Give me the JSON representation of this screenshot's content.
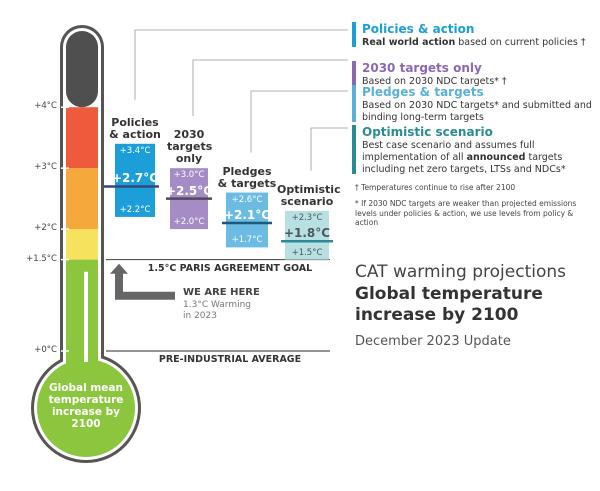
{
  "chart_data": {
    "type": "range",
    "title": "CAT warming projections",
    "subtitle": "Global temperature increase by 2100",
    "date": "December 2023 Update",
    "y_label": "Global mean temperature increase by 2100",
    "ylim": [
      0,
      5.3
    ],
    "yticks": [
      {
        "value": 0,
        "label": "+0°C"
      },
      {
        "value": 1.5,
        "label": "+1.5°C"
      },
      {
        "value": 2,
        "label": "+2°C"
      },
      {
        "value": 3,
        "label": "+3°C"
      },
      {
        "value": 4,
        "label": "+4°C"
      }
    ],
    "band_colors": [
      "#8cc63f",
      "#f6e25c",
      "#f5a83b",
      "#ee5a3c",
      "#4f4f4f"
    ],
    "series": [
      {
        "name": "Policies & action",
        "color": "#1c9fd9",
        "box_color": "#1c9fd9",
        "line_color": "#34477a",
        "label_color": "#ffffff",
        "values": [
          2.2,
          2.7,
          3.4
        ],
        "value_labels": [
          "+2.2°C",
          "+2.7°C",
          "+3.4°C"
        ],
        "description": [
          {
            "text": "Real world action",
            "bold": true
          },
          {
            "text": " based on current policies †",
            "bold": false
          }
        ]
      },
      {
        "name": "2030 targets only",
        "color": "#8b68b3",
        "box_color": "#a58cc4",
        "line_color": "#4f4a5e",
        "label_color": "#ffffff",
        "values": [
          2.0,
          2.5,
          3.0
        ],
        "value_labels": [
          "+2.0°C",
          "+2.5°C",
          "+3.0°C"
        ],
        "description": [
          {
            "text": "Based on 2030 NDC targets* †",
            "bold": false
          }
        ]
      },
      {
        "name": "Pledges & targets",
        "color": "#5bb0d9",
        "box_color": "#6cbbe3",
        "line_color": "#1d5a7a",
        "label_color": "#ffffff",
        "values": [
          1.7,
          2.1,
          2.6
        ],
        "value_labels": [
          "+1.7°C",
          "+2.1°C",
          "+2.6°C"
        ],
        "description": [
          {
            "text": "Based on 2030 NDC targets* and submitted and binding long-term targets",
            "bold": false
          }
        ]
      },
      {
        "name": "Optimistic scenario",
        "color": "#2b8b94",
        "box_color": "#b8dfe1",
        "line_color": "#2b8b94",
        "label_color": "#4a5a5c",
        "values": [
          1.5,
          1.8,
          2.3
        ],
        "value_labels": [
          "+1.5°C",
          "+1.8°C",
          "+2.3°C"
        ],
        "description": [
          {
            "text": "Best case scenario and assumes full implementation of all ",
            "bold": false
          },
          {
            "text": "announced",
            "bold": true
          },
          {
            "text": " targets including net zero targets, LTSs and NDCs*",
            "bold": false
          }
        ]
      }
    ],
    "reference_lines": [
      {
        "label": "1.5°C PARIS AGREEMENT GOAL",
        "value": 1.5
      },
      {
        "label": "PRE-INDUSTRIAL AVERAGE",
        "value": 0
      }
    ],
    "current": {
      "label": "WE ARE HERE",
      "note": "1.3°C Warming in 2023",
      "value": 1.3
    },
    "footnotes": [
      "† Temperatures continue to rise after 2100",
      "* If 2030 NDC targets are weaker than projected emissions levels under policies & action, we use levels from policy & action"
    ]
  }
}
